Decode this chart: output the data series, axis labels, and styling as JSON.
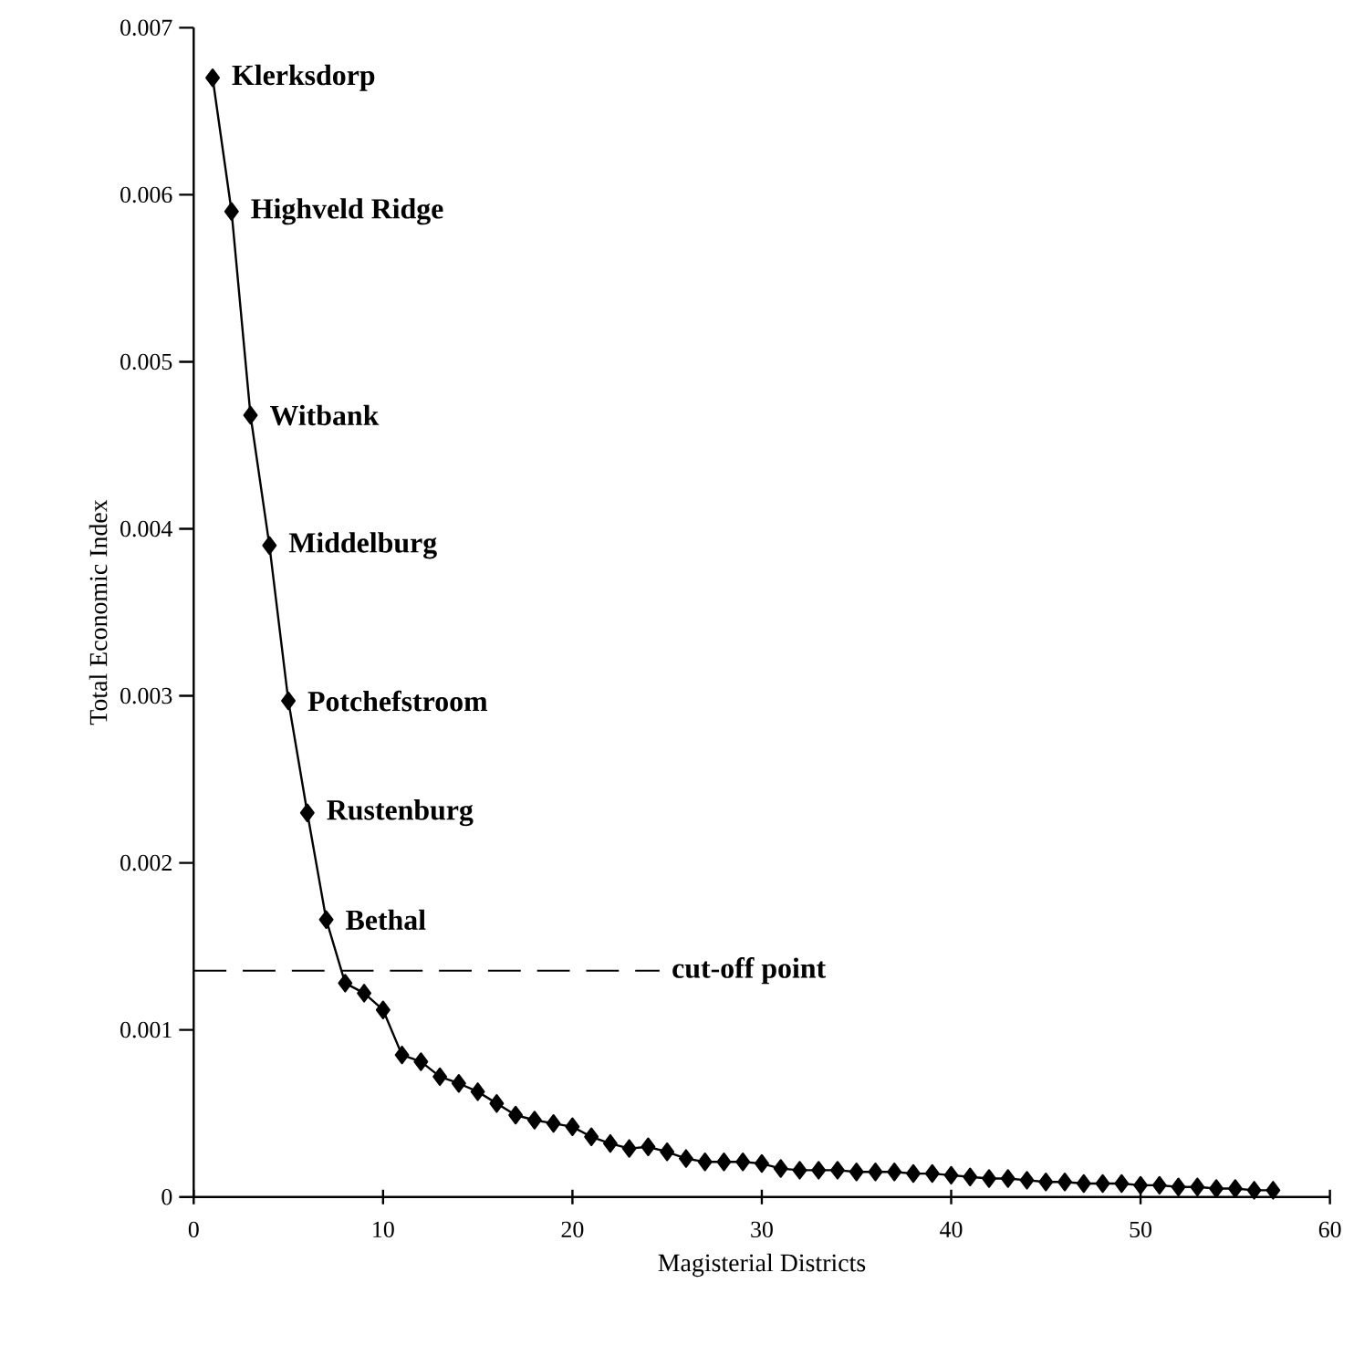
{
  "chart_data": {
    "type": "line",
    "xlabel": "Magisterial Districts",
    "ylabel": "Total Economic Index",
    "x": [
      1,
      2,
      3,
      4,
      5,
      6,
      7,
      8,
      9,
      10,
      11,
      12,
      13,
      14,
      15,
      16,
      17,
      18,
      19,
      20,
      21,
      22,
      23,
      24,
      25,
      26,
      27,
      28,
      29,
      30,
      31,
      32,
      33,
      34,
      35,
      36,
      37,
      38,
      39,
      40,
      41,
      42,
      43,
      44,
      45,
      46,
      47,
      48,
      49,
      50,
      51,
      52,
      53,
      54,
      55,
      56,
      57
    ],
    "series": [
      {
        "color": "#000000",
        "values": [
          0.0067,
          0.0059,
          0.00468,
          0.0039,
          0.00297,
          0.0023,
          0.00166,
          0.00128,
          0.00122,
          0.00112,
          0.00085,
          0.00081,
          0.00072,
          0.00068,
          0.00063,
          0.00056,
          0.00049,
          0.00046,
          0.00044,
          0.00042,
          0.00036,
          0.00032,
          0.00029,
          0.0003,
          0.00027,
          0.00023,
          0.00021,
          0.00021,
          0.00021,
          0.0002,
          0.00017,
          0.00016,
          0.00016,
          0.00016,
          0.00015,
          0.00015,
          0.00015,
          0.00014,
          0.00014,
          0.00013,
          0.00012,
          0.00011,
          0.00011,
          0.0001,
          9e-05,
          9e-05,
          8e-05,
          8e-05,
          8e-05,
          7e-05,
          7e-05,
          6e-05,
          6e-05,
          5e-05,
          5e-05,
          4e-05,
          4e-05
        ]
      }
    ],
    "xlim": [
      0,
      60
    ],
    "ylim": [
      0,
      0.007
    ],
    "xticks": [
      0,
      10,
      20,
      30,
      40,
      50,
      60
    ],
    "yticks": [
      0,
      0.001,
      0.002,
      0.003,
      0.004,
      0.005,
      0.006,
      0.007
    ],
    "marker": "diamond",
    "line_style": "solid",
    "grid": false,
    "annotations": [
      {
        "text": "Klerksdorp",
        "x": 1,
        "y": 0.0067
      },
      {
        "text": "Highveld Ridge",
        "x": 2,
        "y": 0.0059
      },
      {
        "text": "Witbank",
        "x": 3,
        "y": 0.00468
      },
      {
        "text": "Middelburg",
        "x": 4,
        "y": 0.0039
      },
      {
        "text": "Potchefstroom",
        "x": 5,
        "y": 0.00297
      },
      {
        "text": "Rustenburg",
        "x": 6,
        "y": 0.0023
      },
      {
        "text": "Bethal",
        "x": 7,
        "y": 0.00166
      }
    ],
    "ref_lines": [
      {
        "axis": "y",
        "value": 0.001355,
        "label": "cut-off point",
        "line_style": "dashed",
        "color": "#000000"
      }
    ]
  }
}
